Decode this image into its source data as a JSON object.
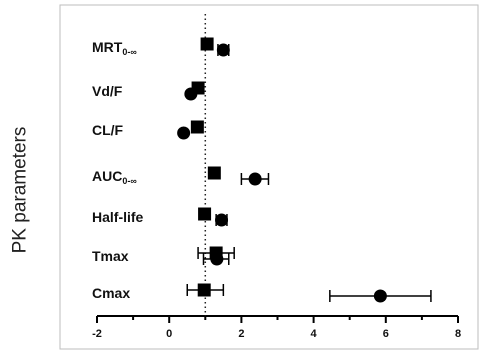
{
  "chart_data": {
    "type": "scatter",
    "title": "",
    "ylabel": "PK parameters",
    "xlabel": "",
    "xlim": [
      -2,
      8
    ],
    "x_ticks": [
      "-2",
      "0",
      "2",
      "4",
      "6",
      "8"
    ],
    "reference_line": {
      "x": 1,
      "style": "dotted"
    },
    "legend": "none",
    "grid": false,
    "parameters": [
      {
        "base": "MRT",
        "sub": "0-∞"
      },
      {
        "base": "Vd/F",
        "sub": ""
      },
      {
        "base": "CL/F",
        "sub": ""
      },
      {
        "base": "AUC",
        "sub": "0-∞"
      },
      {
        "base": "Half-life",
        "sub": ""
      },
      {
        "base": "Tmax",
        "sub": ""
      },
      {
        "base": "Cmax",
        "sub": ""
      }
    ],
    "series": [
      {
        "marker": "square",
        "points": [
          {
            "parameter": "MRT0-∞",
            "value": 1.05,
            "low": null,
            "high": null
          },
          {
            "parameter": "Vd/F",
            "value": 0.8,
            "low": null,
            "high": null
          },
          {
            "parameter": "CL/F",
            "value": 0.78,
            "low": null,
            "high": null
          },
          {
            "parameter": "AUC0-∞",
            "value": 1.25,
            "low": null,
            "high": null
          },
          {
            "parameter": "Half-life",
            "value": 0.98,
            "low": null,
            "high": null
          },
          {
            "parameter": "Tmax",
            "value": 1.3,
            "low": 0.8,
            "high": 1.8
          },
          {
            "parameter": "Cmax",
            "value": 0.97,
            "low": 0.5,
            "high": 1.5
          }
        ]
      },
      {
        "marker": "circle",
        "points": [
          {
            "parameter": "MRT0-∞",
            "value": 1.5,
            "low": 1.35,
            "high": 1.65
          },
          {
            "parameter": "Vd/F",
            "value": 0.6,
            "low": null,
            "high": null
          },
          {
            "parameter": "CL/F",
            "value": 0.4,
            "low": null,
            "high": null
          },
          {
            "parameter": "AUC0-∞",
            "value": 2.38,
            "low": 2.0,
            "high": 2.75
          },
          {
            "parameter": "Half-life",
            "value": 1.45,
            "low": 1.3,
            "high": 1.6
          },
          {
            "parameter": "Tmax",
            "value": 1.32,
            "low": 0.95,
            "high": 1.65
          },
          {
            "parameter": "Cmax",
            "value": 5.85,
            "low": 4.45,
            "high": 7.25
          }
        ]
      }
    ]
  },
  "colors": {
    "axis": "#000000",
    "marker": "#000000"
  }
}
